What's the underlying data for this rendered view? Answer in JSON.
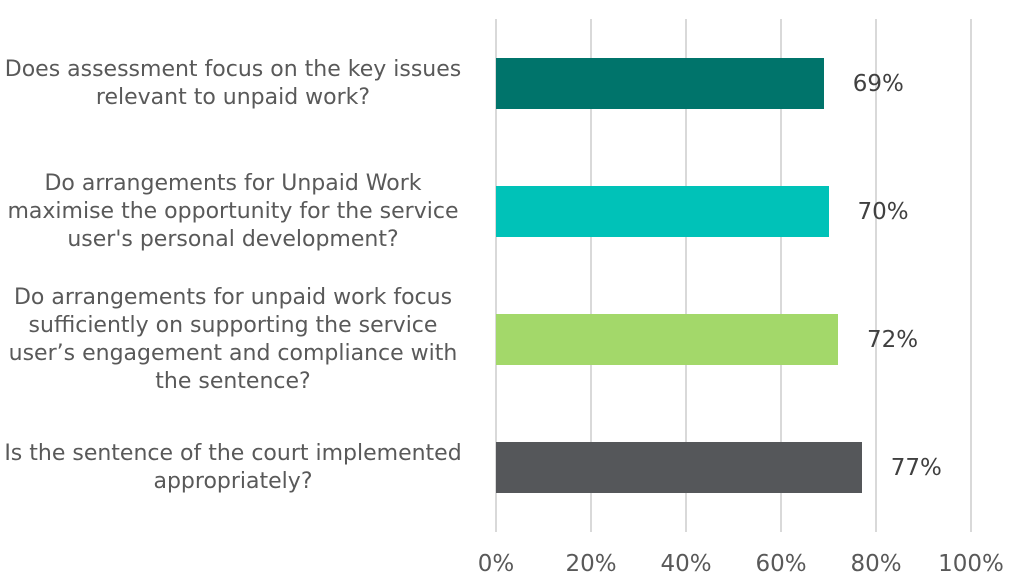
{
  "chart_data": {
    "type": "bar",
    "orientation": "horizontal",
    "title": "",
    "xlabel": "",
    "ylabel": "",
    "xlim": [
      0,
      100
    ],
    "grid": true,
    "legend": null,
    "categories": [
      "Does assessment focus on the key issues relevant to unpaid work?",
      "Do arrangements for Unpaid Work maximise the opportunity for the service user's personal development?",
      "Do arrangements for unpaid work focus sufficiently on supporting the service user’s engagement and compliance with the sentence?",
      "Is the sentence of the court implemented appropriately?"
    ],
    "values": [
      69,
      70,
      72,
      77
    ],
    "value_labels": [
      "69%",
      "70%",
      "72%",
      "77%"
    ],
    "colors": [
      "#00746b",
      "#00c2b8",
      "#a3d86a",
      "#55575a"
    ],
    "x_ticks": [
      "0%",
      "20%",
      "40%",
      "60%",
      "80%",
      "100%"
    ]
  },
  "labels": {
    "bar0": [
      "Does assessment focus on the key issues",
      "relevant to unpaid work?"
    ],
    "bar1": [
      "Do arrangements for Unpaid Work",
      "maximise the opportunity for the service",
      "user's personal development?"
    ],
    "bar2": [
      "Do arrangements for unpaid work focus",
      "sufficiently on supporting the service",
      "user’s engagement and compliance with",
      "the sentence?"
    ],
    "bar3": [
      "Is the sentence of the court implemented",
      "appropriately?"
    ]
  }
}
